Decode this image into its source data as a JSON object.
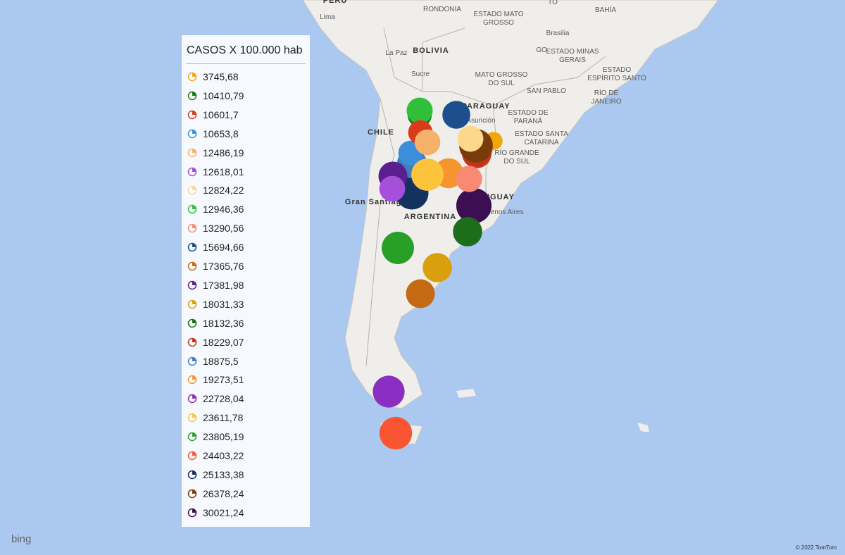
{
  "legend": {
    "title": "CASOS X 100.000 hab",
    "items": [
      {
        "value": 3745.68,
        "label": "3745,68",
        "color": "#f2a60c"
      },
      {
        "value": 10410.79,
        "label": "10410,79",
        "color": "#1a7a1a"
      },
      {
        "value": 10601.7,
        "label": "10601,7",
        "color": "#d93b1b"
      },
      {
        "value": 10653.8,
        "label": "10653,8",
        "color": "#3d8fdc"
      },
      {
        "value": 12486.19,
        "label": "12486,19",
        "color": "#f5b06a"
      },
      {
        "value": 12618.01,
        "label": "12618,01",
        "color": "#a64fdb"
      },
      {
        "value": 12824.22,
        "label": "12824,22",
        "color": "#fcd98a"
      },
      {
        "value": 12946.36,
        "label": "12946,36",
        "color": "#2fbf3a"
      },
      {
        "value": 13290.56,
        "label": "13290,56",
        "color": "#f88a73"
      },
      {
        "value": 15694.66,
        "label": "15694,66",
        "color": "#1e4f8c"
      },
      {
        "value": 17365.76,
        "label": "17365,76",
        "color": "#c46a12"
      },
      {
        "value": 17381.98,
        "label": "17381,98",
        "color": "#5a1e8f"
      },
      {
        "value": 18031.33,
        "label": "18031,33",
        "color": "#d9a00c"
      },
      {
        "value": 18132.36,
        "label": "18132,36",
        "color": "#1c6e1c"
      },
      {
        "value": 18229.07,
        "label": "18229,07",
        "color": "#c8321a"
      },
      {
        "value": 18875.5,
        "label": "18875,5",
        "color": "#3f7fc0"
      },
      {
        "value": 19273.51,
        "label": "19273,51",
        "color": "#f5952e"
      },
      {
        "value": 22728.04,
        "label": "22728,04",
        "color": "#8a2fc2"
      },
      {
        "value": 23611.78,
        "label": "23611,78",
        "color": "#fcc43a"
      },
      {
        "value": 23805.19,
        "label": "23805,19",
        "color": "#28a028"
      },
      {
        "value": 24403.22,
        "label": "24403,22",
        "color": "#fa5533"
      },
      {
        "value": 25133.38,
        "label": "25133,38",
        "color": "#14325e"
      },
      {
        "value": 26378.24,
        "label": "26378,24",
        "color": "#7a3b0b"
      },
      {
        "value": 30021.24,
        "label": "30021,24",
        "color": "#3c0f52"
      }
    ]
  },
  "map": {
    "labels": [
      "PERU",
      "Lima",
      "RONDONIA",
      "ESTADO MATO",
      "GROSSO",
      "TO",
      "BAHÍA",
      "Brasilia",
      "GO",
      "ESTADO MINAS",
      "GERAIS",
      "BOLIVIA",
      "La Paz",
      "Sucre",
      "MATO GROSSO",
      "DO SUL",
      "ESTADO",
      "ESPÍRITO SANTO",
      "SAN PABLO",
      "RÍO DE",
      "JANEIRO",
      "ESTADO DE",
      "PARANÁ",
      "ESTADO SANTA",
      "CATARINA",
      "RÍO GRANDE",
      "DO SUL",
      "PARAGUAY",
      "Asunción",
      "CHILE",
      "Gran Santiago",
      "ARGENTINA",
      "URUGUAY",
      "Buenos Aires"
    ],
    "logo": "bing",
    "copyright": "© 2022 TomTom"
  }
}
